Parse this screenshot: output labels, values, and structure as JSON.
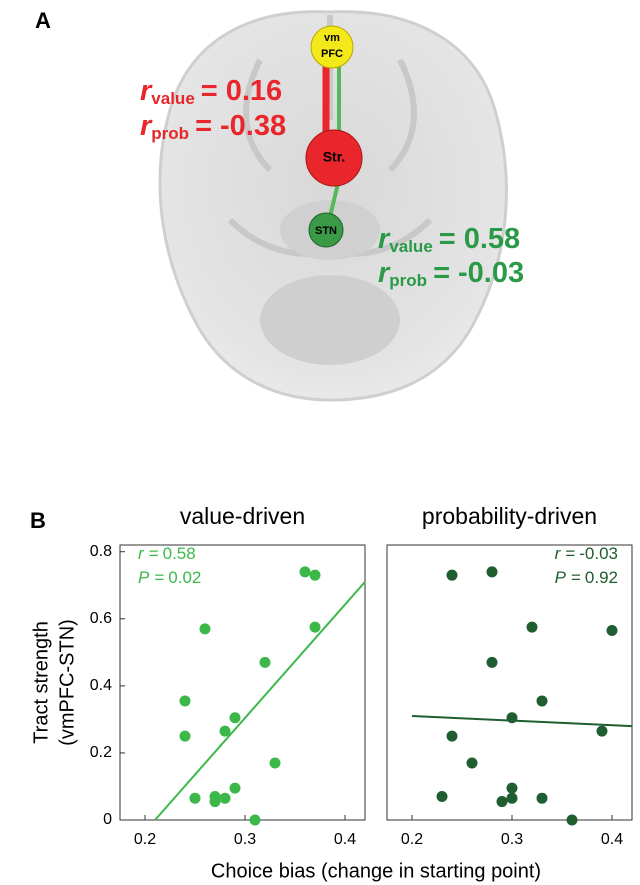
{
  "panel_a": {
    "label": "A",
    "nodes": [
      {
        "label_lines": [
          "vm",
          "PFC"
        ]
      },
      {
        "label_lines": [
          "Str."
        ]
      },
      {
        "label_lines": [
          "STN"
        ]
      }
    ],
    "correlations": [
      {
        "symbol": "r",
        "subscript": "value",
        "sign": "=",
        "value": 0.16,
        "color": "#e8262b"
      },
      {
        "symbol": "r",
        "subscript": "prob",
        "sign": "=",
        "value": -0.38,
        "color": "#e8262b"
      },
      {
        "symbol": "r",
        "subscript": "value",
        "sign": "=",
        "value": 0.58,
        "color": "#2a9a48"
      },
      {
        "symbol": "r",
        "subscript": "prob",
        "sign": "=",
        "value": -0.03,
        "color": "#2a9a48"
      }
    ]
  },
  "panel_b": {
    "label": "B",
    "x_label": "Choice bias (change in starting point)"
  },
  "chart_data": [
    {
      "type": "scatter",
      "title": "value-driven",
      "y_label": [
        "Tract strength",
        "(vmPFC-STN)"
      ],
      "color": "#3cb84a",
      "x": [
        0.36,
        0.37,
        0.37,
        0.26,
        0.32,
        0.24,
        0.24,
        0.29,
        0.28,
        0.33,
        0.25,
        0.27,
        0.27,
        0.28,
        0.29,
        0.31
      ],
      "values": [
        0.74,
        0.73,
        0.575,
        0.57,
        0.47,
        0.355,
        0.25,
        0.305,
        0.265,
        0.17,
        0.065,
        0.07,
        0.055,
        0.065,
        0.095,
        0.0
      ],
      "trend_line": {
        "x": [
          0.21,
          0.42
        ],
        "y": [
          0,
          0.71
        ]
      },
      "annotations": [
        {
          "symbol": "r",
          "sign": "=",
          "value": 0.58
        },
        {
          "symbol": "P",
          "sign": "=",
          "value": 0.02
        }
      ],
      "xlim": [
        0.175,
        0.42
      ],
      "ylim": [
        0,
        0.82
      ],
      "xticks": [
        0.2,
        0.3,
        0.4
      ],
      "yticks": [
        0,
        0.2,
        0.4,
        0.6,
        0.8
      ]
    },
    {
      "type": "scatter",
      "title": "probability-driven",
      "color": "#1f5e30",
      "x": [
        0.24,
        0.28,
        0.32,
        0.4,
        0.28,
        0.33,
        0.3,
        0.39,
        0.24,
        0.26,
        0.23,
        0.29,
        0.3,
        0.3,
        0.33,
        0.36
      ],
      "values": [
        0.73,
        0.74,
        0.575,
        0.565,
        0.47,
        0.355,
        0.305,
        0.265,
        0.25,
        0.17,
        0.07,
        0.055,
        0.095,
        0.065,
        0.065,
        0.0
      ],
      "trend_line": {
        "x": [
          0.2,
          0.42
        ],
        "y": [
          0.31,
          0.28
        ]
      },
      "annotations": [
        {
          "symbol": "r",
          "sign": "=",
          "value": -0.03
        },
        {
          "symbol": "P",
          "sign": "=",
          "value": 0.92
        }
      ],
      "xlim": [
        0.175,
        0.42
      ],
      "ylim": [
        0,
        0.82
      ],
      "xticks": [
        0.2,
        0.3,
        0.4
      ]
    }
  ]
}
